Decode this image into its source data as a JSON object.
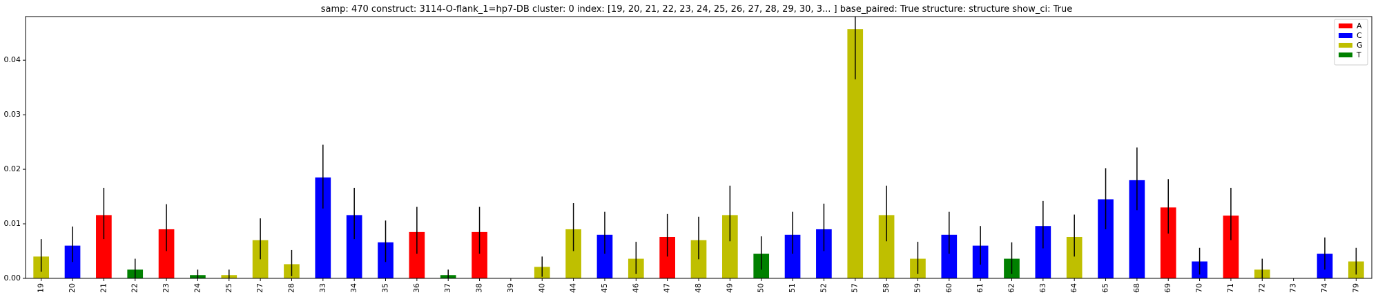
{
  "chart_data": {
    "type": "bar",
    "title": "samp: 470  construct: 3114-O-flank_1=hp7-DB  cluster: 0  index: [19, 20, 21, 22, 23, 24, 25, 26, 27, 28, 29, 30, 3... ]  base_paired: True  structure: structure  show_ci: True",
    "xlabel": "",
    "ylabel": "",
    "ylim": [
      0,
      0.048
    ],
    "yticks": [
      "0.00",
      "0.01",
      "0.02",
      "0.03",
      "0.04"
    ],
    "grid": false,
    "legend_position": "top-right",
    "legend": [
      {
        "base": "A",
        "color": "#ff0000"
      },
      {
        "base": "C",
        "color": "#0000ff"
      },
      {
        "base": "G",
        "color": "#bfbf00"
      },
      {
        "base": "T",
        "color": "#008000"
      }
    ],
    "colors": {
      "A": "#ff0000",
      "C": "#0000ff",
      "G": "#bfbf00",
      "T": "#008000"
    },
    "categories": [
      "19",
      "20",
      "21",
      "22",
      "23",
      "24",
      "25",
      "27",
      "28",
      "33",
      "34",
      "35",
      "36",
      "37",
      "38",
      "39",
      "40",
      "44",
      "45",
      "46",
      "47",
      "48",
      "49",
      "50",
      "51",
      "52",
      "57",
      "58",
      "59",
      "60",
      "61",
      "62",
      "63",
      "64",
      "65",
      "68",
      "69",
      "70",
      "71",
      "72",
      "73",
      "74",
      "79"
    ],
    "bases": [
      "G",
      "C",
      "A",
      "T",
      "A",
      "T",
      "G",
      "G",
      "G",
      "C",
      "C",
      "C",
      "A",
      "T",
      "A",
      "A",
      "G",
      "G",
      "C",
      "G",
      "A",
      "G",
      "G",
      "T",
      "C",
      "C",
      "G",
      "G",
      "G",
      "C",
      "C",
      "T",
      "C",
      "G",
      "C",
      "C",
      "A",
      "C",
      "A",
      "G",
      "G",
      "C",
      "G"
    ],
    "values": [
      0.004,
      0.006,
      0.0116,
      0.0016,
      0.009,
      0.0006,
      0.0006,
      0.007,
      0.0026,
      0.0185,
      0.0116,
      0.0066,
      0.0085,
      0.0006,
      0.0085,
      0.0,
      0.0021,
      0.009,
      0.008,
      0.0036,
      0.0076,
      0.007,
      0.0116,
      0.0045,
      0.008,
      0.009,
      0.0457,
      0.0116,
      0.0036,
      0.008,
      0.006,
      0.0036,
      0.0096,
      0.0076,
      0.0145,
      0.018,
      0.013,
      0.0031,
      0.0115,
      0.0016,
      0.0,
      0.0045,
      0.0031
    ],
    "ci_low": [
      0.0012,
      0.003,
      0.0072,
      0.0,
      0.005,
      0.0,
      0.0,
      0.0035,
      0.0004,
      0.0128,
      0.0072,
      0.003,
      0.0045,
      0.0,
      0.0045,
      0.0,
      0.0003,
      0.005,
      0.0045,
      0.0008,
      0.004,
      0.0035,
      0.0068,
      0.0016,
      0.0045,
      0.005,
      0.0365,
      0.0068,
      0.0008,
      0.0045,
      0.0025,
      0.0008,
      0.0055,
      0.004,
      0.009,
      0.0125,
      0.0082,
      0.0007,
      0.007,
      0.0,
      0.0,
      0.0016,
      0.0007
    ],
    "ci_high": [
      0.0072,
      0.0095,
      0.0166,
      0.0036,
      0.0136,
      0.0016,
      0.0016,
      0.011,
      0.0052,
      0.0245,
      0.0166,
      0.0106,
      0.0131,
      0.0016,
      0.0131,
      0.0,
      0.004,
      0.0138,
      0.0122,
      0.0067,
      0.0118,
      0.0113,
      0.017,
      0.0077,
      0.0122,
      0.0137,
      0.048,
      0.017,
      0.0067,
      0.0122,
      0.0096,
      0.0066,
      0.0142,
      0.0117,
      0.0202,
      0.024,
      0.0182,
      0.0056,
      0.0166,
      0.0036,
      0.0,
      0.0075,
      0.0056
    ]
  }
}
